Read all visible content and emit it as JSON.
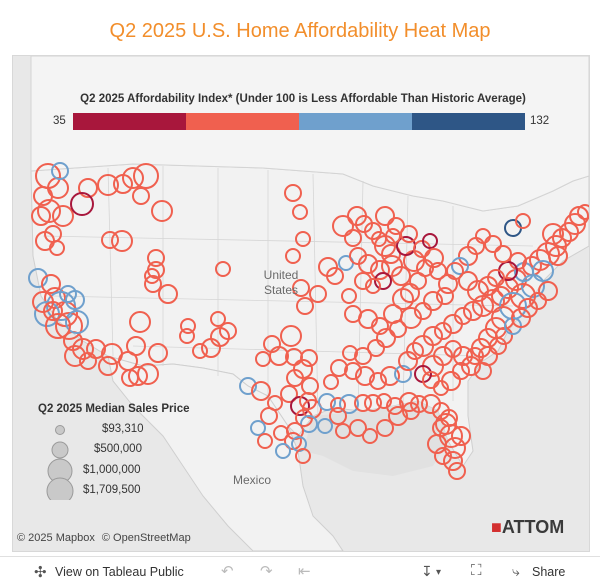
{
  "title": "Q2 2025 U.S. Home Affordability Heat Map",
  "color_legend": {
    "title": "Q2 2025 Affordability Index* (Under 100 is Less Affordable Than Historic Average)",
    "min": "35",
    "max": "132",
    "colors": [
      "#a8173c",
      "#f0604f",
      "#6fa0cd",
      "#2e5686"
    ]
  },
  "map_labels": {
    "united_states": "United States",
    "mexico": "Mexico"
  },
  "size_legend": {
    "title": "Q2 2025 Median Sales Price",
    "items": [
      "$93,310",
      "$500,000",
      "$1,000,000",
      "$1,709,500"
    ]
  },
  "attribution": {
    "mapbox": "© 2025 Mapbox",
    "osm": "© OpenStreetMap"
  },
  "logo": {
    "text": "ATTOM"
  },
  "toolbar": {
    "view_label": "View on Tableau Public",
    "share_label": "Share"
  },
  "marker_colors": {
    "red": "#f0604f",
    "dark_red": "#a8173c",
    "blue": "#6fa0cd",
    "dark_blue": "#2e5686"
  }
}
